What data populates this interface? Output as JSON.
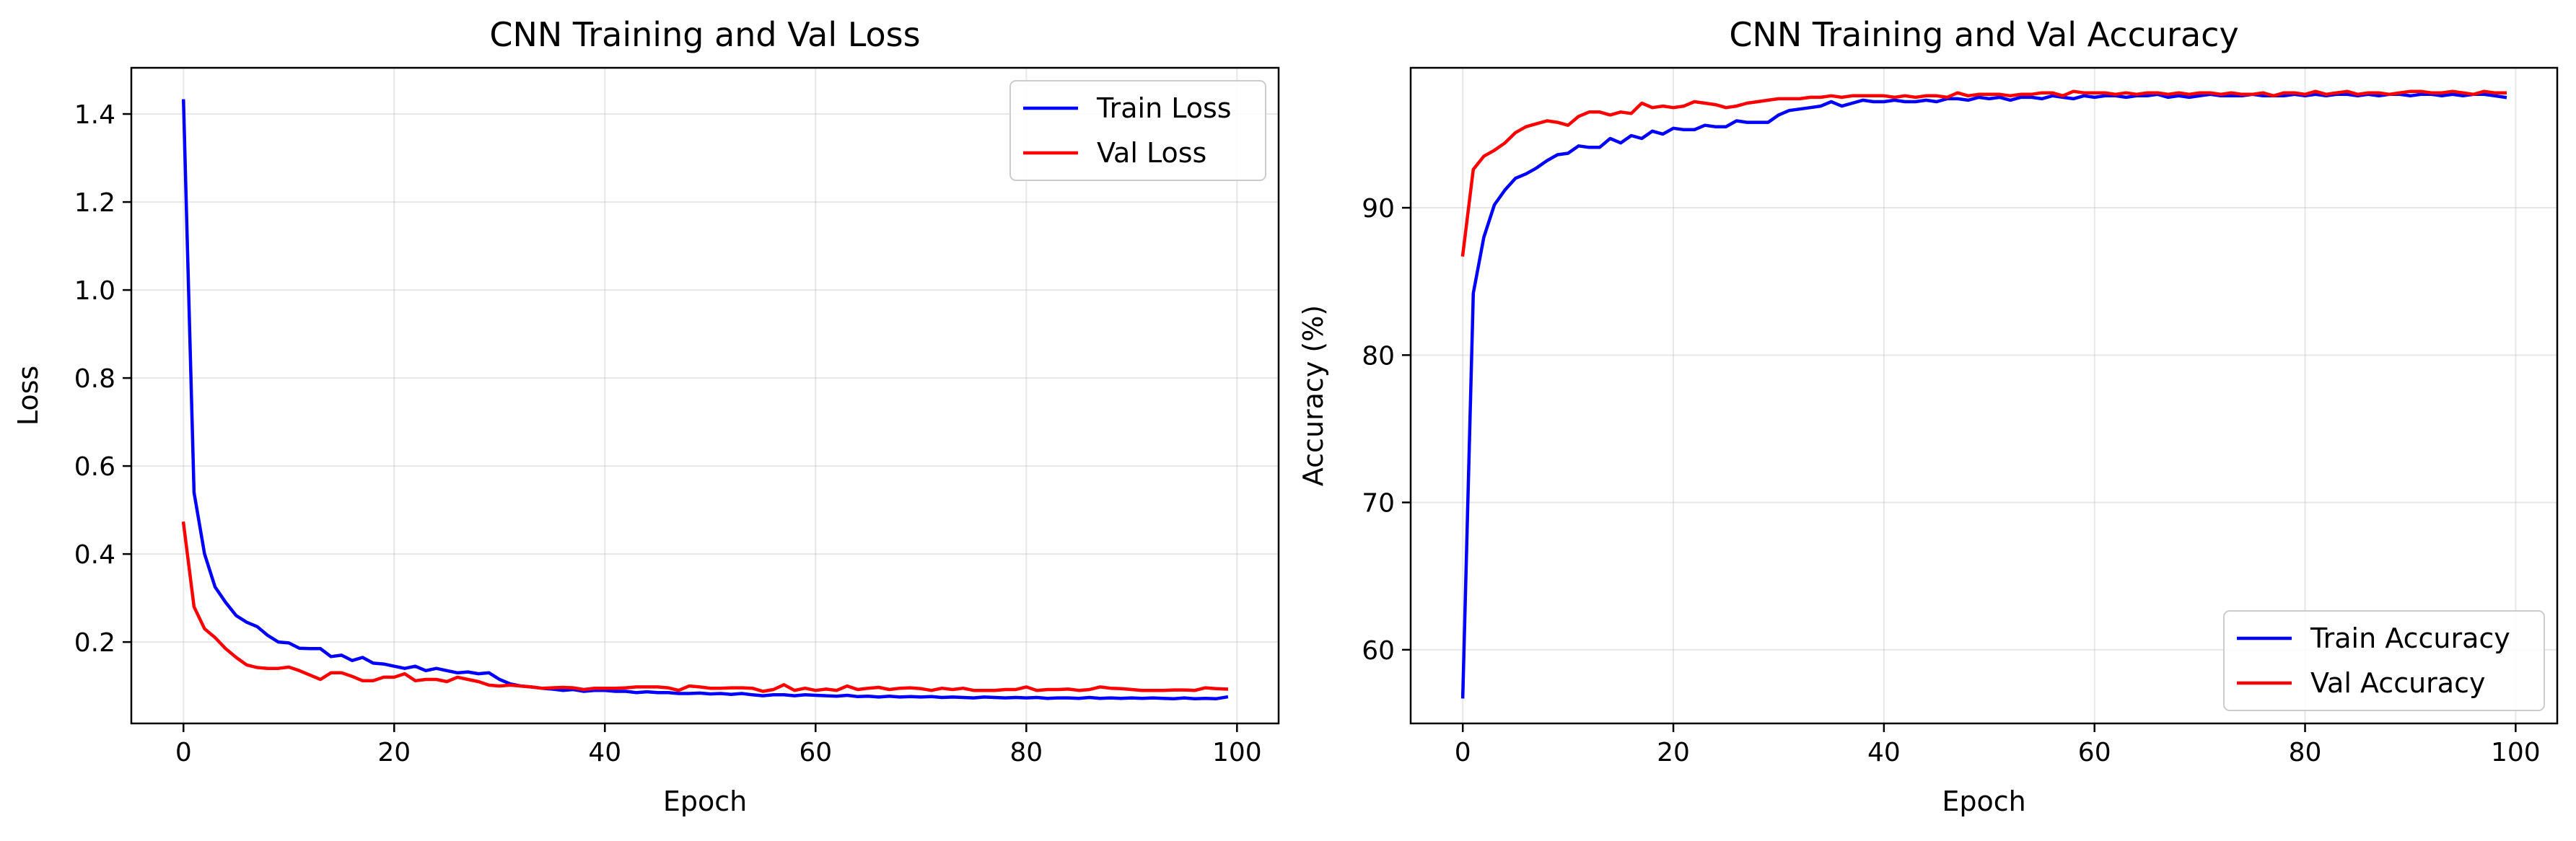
{
  "chart_data": [
    {
      "type": "line",
      "title": "CNN Training and Val Loss",
      "xlabel": "Epoch",
      "ylabel": "Loss",
      "xlim": [
        -4.95,
        103.95
      ],
      "ylim": [
        0.015,
        1.505
      ],
      "xticks": [
        0,
        20,
        40,
        60,
        80,
        100
      ],
      "yticks": [
        0.2,
        0.4,
        0.6,
        0.8,
        1.0,
        1.2,
        1.4
      ],
      "xtick_labels": [
        "0",
        "20",
        "40",
        "60",
        "80",
        "100"
      ],
      "ytick_labels": [
        "0.2",
        "0.4",
        "0.6",
        "0.8",
        "1.0",
        "1.2",
        "1.4"
      ],
      "grid": true,
      "legend_position": "top-right",
      "x": [
        0,
        1,
        2,
        3,
        4,
        5,
        6,
        7,
        8,
        9,
        10,
        11,
        12,
        13,
        14,
        15,
        16,
        17,
        18,
        19,
        20,
        21,
        22,
        23,
        24,
        25,
        26,
        27,
        28,
        29,
        30,
        31,
        32,
        33,
        34,
        35,
        36,
        37,
        38,
        39,
        40,
        41,
        42,
        43,
        44,
        45,
        46,
        47,
        48,
        49,
        50,
        51,
        52,
        53,
        54,
        55,
        56,
        57,
        58,
        59,
        60,
        61,
        62,
        63,
        64,
        65,
        66,
        67,
        68,
        69,
        70,
        71,
        72,
        73,
        74,
        75,
        76,
        77,
        78,
        79,
        80,
        81,
        82,
        83,
        84,
        85,
        86,
        87,
        88,
        89,
        90,
        91,
        92,
        93,
        94,
        95,
        96,
        97,
        98,
        99
      ],
      "series": [
        {
          "name": "Train Loss",
          "color": "#0000ff",
          "values": [
            1.43,
            0.54,
            0.4,
            0.325,
            0.29,
            0.26,
            0.245,
            0.235,
            0.215,
            0.2,
            0.198,
            0.186,
            0.185,
            0.185,
            0.167,
            0.17,
            0.158,
            0.165,
            0.152,
            0.15,
            0.145,
            0.14,
            0.145,
            0.135,
            0.14,
            0.135,
            0.13,
            0.132,
            0.128,
            0.13,
            0.115,
            0.105,
            0.1,
            0.098,
            0.095,
            0.093,
            0.09,
            0.092,
            0.088,
            0.09,
            0.09,
            0.088,
            0.088,
            0.085,
            0.087,
            0.085,
            0.085,
            0.083,
            0.083,
            0.084,
            0.082,
            0.083,
            0.081,
            0.083,
            0.08,
            0.078,
            0.08,
            0.08,
            0.078,
            0.08,
            0.079,
            0.078,
            0.077,
            0.079,
            0.076,
            0.077,
            0.075,
            0.077,
            0.075,
            0.076,
            0.075,
            0.076,
            0.074,
            0.075,
            0.074,
            0.073,
            0.075,
            0.074,
            0.073,
            0.074,
            0.073,
            0.074,
            0.072,
            0.073,
            0.073,
            0.072,
            0.074,
            0.072,
            0.073,
            0.072,
            0.073,
            0.072,
            0.073,
            0.072,
            0.071,
            0.073,
            0.071,
            0.072,
            0.071,
            0.075
          ]
        },
        {
          "name": "Val Loss",
          "color": "#ff0000",
          "values": [
            0.47,
            0.28,
            0.23,
            0.21,
            0.185,
            0.165,
            0.148,
            0.142,
            0.14,
            0.14,
            0.143,
            0.135,
            0.125,
            0.115,
            0.13,
            0.13,
            0.122,
            0.112,
            0.112,
            0.12,
            0.12,
            0.128,
            0.112,
            0.115,
            0.115,
            0.11,
            0.12,
            0.115,
            0.11,
            0.102,
            0.1,
            0.102,
            0.1,
            0.098,
            0.095,
            0.096,
            0.097,
            0.096,
            0.092,
            0.095,
            0.095,
            0.095,
            0.096,
            0.098,
            0.098,
            0.098,
            0.096,
            0.09,
            0.1,
            0.098,
            0.095,
            0.095,
            0.096,
            0.096,
            0.095,
            0.088,
            0.092,
            0.103,
            0.09,
            0.095,
            0.09,
            0.093,
            0.09,
            0.1,
            0.092,
            0.095,
            0.097,
            0.092,
            0.095,
            0.096,
            0.094,
            0.09,
            0.095,
            0.092,
            0.095,
            0.09,
            0.09,
            0.09,
            0.092,
            0.092,
            0.098,
            0.09,
            0.092,
            0.092,
            0.093,
            0.09,
            0.092,
            0.098,
            0.095,
            0.094,
            0.092,
            0.09,
            0.09,
            0.09,
            0.091,
            0.091,
            0.09,
            0.096,
            0.094,
            0.093
          ]
        }
      ]
    },
    {
      "type": "line",
      "title": "CNN Training and Val Accuracy",
      "xlabel": "Epoch",
      "ylabel": "Accuracy (%)",
      "xlim": [
        -4.95,
        103.95
      ],
      "ylim": [
        55.0,
        99.5
      ],
      "xticks": [
        0,
        20,
        40,
        60,
        80,
        100
      ],
      "yticks": [
        60,
        70,
        80,
        90
      ],
      "xtick_labels": [
        "0",
        "20",
        "40",
        "60",
        "80",
        "100"
      ],
      "ytick_labels": [
        "60",
        "70",
        "80",
        "90"
      ],
      "grid": true,
      "legend_position": "bottom-right",
      "x": [
        0,
        1,
        2,
        3,
        4,
        5,
        6,
        7,
        8,
        9,
        10,
        11,
        12,
        13,
        14,
        15,
        16,
        17,
        18,
        19,
        20,
        21,
        22,
        23,
        24,
        25,
        26,
        27,
        28,
        29,
        30,
        31,
        32,
        33,
        34,
        35,
        36,
        37,
        38,
        39,
        40,
        41,
        42,
        43,
        44,
        45,
        46,
        47,
        48,
        49,
        50,
        51,
        52,
        53,
        54,
        55,
        56,
        57,
        58,
        59,
        60,
        61,
        62,
        63,
        64,
        65,
        66,
        67,
        68,
        69,
        70,
        71,
        72,
        73,
        74,
        75,
        76,
        77,
        78,
        79,
        80,
        81,
        82,
        83,
        84,
        85,
        86,
        87,
        88,
        89,
        90,
        91,
        92,
        93,
        94,
        95,
        96,
        97,
        98,
        99
      ],
      "series": [
        {
          "name": "Train Accuracy",
          "color": "#0000ff",
          "values": [
            56.8,
            84.2,
            88.0,
            90.2,
            91.2,
            92.0,
            92.3,
            92.7,
            93.2,
            93.6,
            93.7,
            94.2,
            94.1,
            94.1,
            94.7,
            94.4,
            94.9,
            94.7,
            95.2,
            95.0,
            95.4,
            95.3,
            95.3,
            95.6,
            95.5,
            95.5,
            95.9,
            95.8,
            95.8,
            95.8,
            96.3,
            96.6,
            96.7,
            96.8,
            96.9,
            97.2,
            96.9,
            97.1,
            97.3,
            97.2,
            97.2,
            97.3,
            97.2,
            97.2,
            97.3,
            97.2,
            97.4,
            97.4,
            97.3,
            97.5,
            97.4,
            97.5,
            97.3,
            97.5,
            97.5,
            97.4,
            97.6,
            97.5,
            97.4,
            97.6,
            97.5,
            97.6,
            97.6,
            97.5,
            97.6,
            97.6,
            97.7,
            97.5,
            97.6,
            97.5,
            97.6,
            97.7,
            97.6,
            97.6,
            97.6,
            97.7,
            97.6,
            97.6,
            97.6,
            97.7,
            97.6,
            97.7,
            97.6,
            97.7,
            97.7,
            97.6,
            97.7,
            97.6,
            97.7,
            97.7,
            97.6,
            97.7,
            97.7,
            97.6,
            97.7,
            97.6,
            97.7,
            97.7,
            97.6,
            97.5
          ]
        },
        {
          "name": "Val Accuracy",
          "color": "#ff0000",
          "values": [
            86.8,
            92.6,
            93.5,
            93.9,
            94.4,
            95.1,
            95.5,
            95.7,
            95.9,
            95.8,
            95.6,
            96.2,
            96.5,
            96.5,
            96.3,
            96.5,
            96.4,
            97.1,
            96.8,
            96.9,
            96.8,
            96.9,
            97.2,
            97.1,
            97.0,
            96.8,
            96.9,
            97.1,
            97.2,
            97.3,
            97.4,
            97.4,
            97.4,
            97.5,
            97.5,
            97.6,
            97.5,
            97.6,
            97.6,
            97.6,
            97.6,
            97.5,
            97.6,
            97.5,
            97.6,
            97.6,
            97.5,
            97.8,
            97.6,
            97.7,
            97.7,
            97.7,
            97.6,
            97.7,
            97.7,
            97.8,
            97.8,
            97.6,
            97.9,
            97.8,
            97.8,
            97.8,
            97.7,
            97.8,
            97.7,
            97.8,
            97.8,
            97.7,
            97.8,
            97.7,
            97.8,
            97.8,
            97.7,
            97.8,
            97.7,
            97.7,
            97.8,
            97.6,
            97.8,
            97.8,
            97.7,
            97.9,
            97.7,
            97.8,
            97.9,
            97.7,
            97.8,
            97.8,
            97.7,
            97.8,
            97.9,
            97.9,
            97.8,
            97.8,
            97.9,
            97.8,
            97.7,
            97.9,
            97.8,
            97.8
          ]
        }
      ]
    }
  ]
}
